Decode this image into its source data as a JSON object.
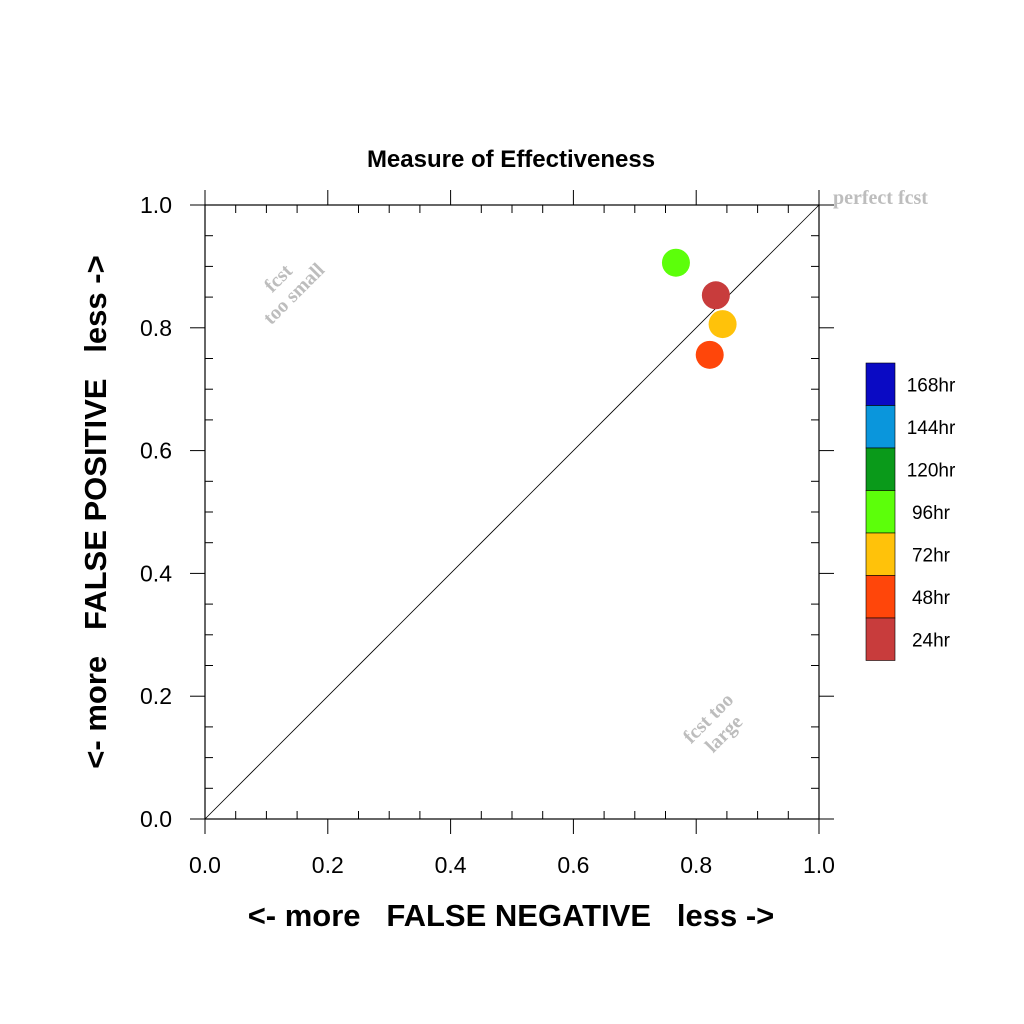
{
  "chart_data": {
    "type": "scatter",
    "title": "Measure of Effectiveness",
    "xlabel": "<- more   FALSE NEGATIVE   less ->",
    "ylabel": "<- more   FALSE POSITIVE   less ->",
    "xlim": [
      0.0,
      1.0
    ],
    "ylim": [
      0.0,
      1.0
    ],
    "x_ticks": [
      "0.0",
      "0.2",
      "0.4",
      "0.6",
      "0.8",
      "1.0"
    ],
    "y_ticks": [
      "0.0",
      "0.2",
      "0.4",
      "0.6",
      "0.8",
      "1.0"
    ],
    "diagonal": true,
    "grid": false,
    "annotations": {
      "perfect": "perfect fcst",
      "small_line1": "fcst",
      "small_line2": "too small",
      "large_line1": "fcst too",
      "large_line2": "large"
    },
    "legend": {
      "placement": "right",
      "entries": [
        {
          "label": "168hr",
          "color": "#0a0ac4"
        },
        {
          "label": "144hr",
          "color": "#0a96dc"
        },
        {
          "label": "120hr",
          "color": "#0a9a1a"
        },
        {
          "label": "96hr",
          "color": "#5cff0a"
        },
        {
          "label": "72hr",
          "color": "#ffc20a"
        },
        {
          "label": "48hr",
          "color": "#ff460a"
        },
        {
          "label": "24hr",
          "color": "#c83c3c"
        }
      ]
    },
    "series": [
      {
        "name": "96hr",
        "color": "#5cff0a",
        "x": 0.767,
        "y": 0.906
      },
      {
        "name": "24hr",
        "color": "#c83c3c",
        "x": 0.832,
        "y": 0.853
      },
      {
        "name": "72hr",
        "color": "#ffc20a",
        "x": 0.843,
        "y": 0.806
      },
      {
        "name": "48hr",
        "color": "#ff460a",
        "x": 0.822,
        "y": 0.756
      }
    ]
  }
}
